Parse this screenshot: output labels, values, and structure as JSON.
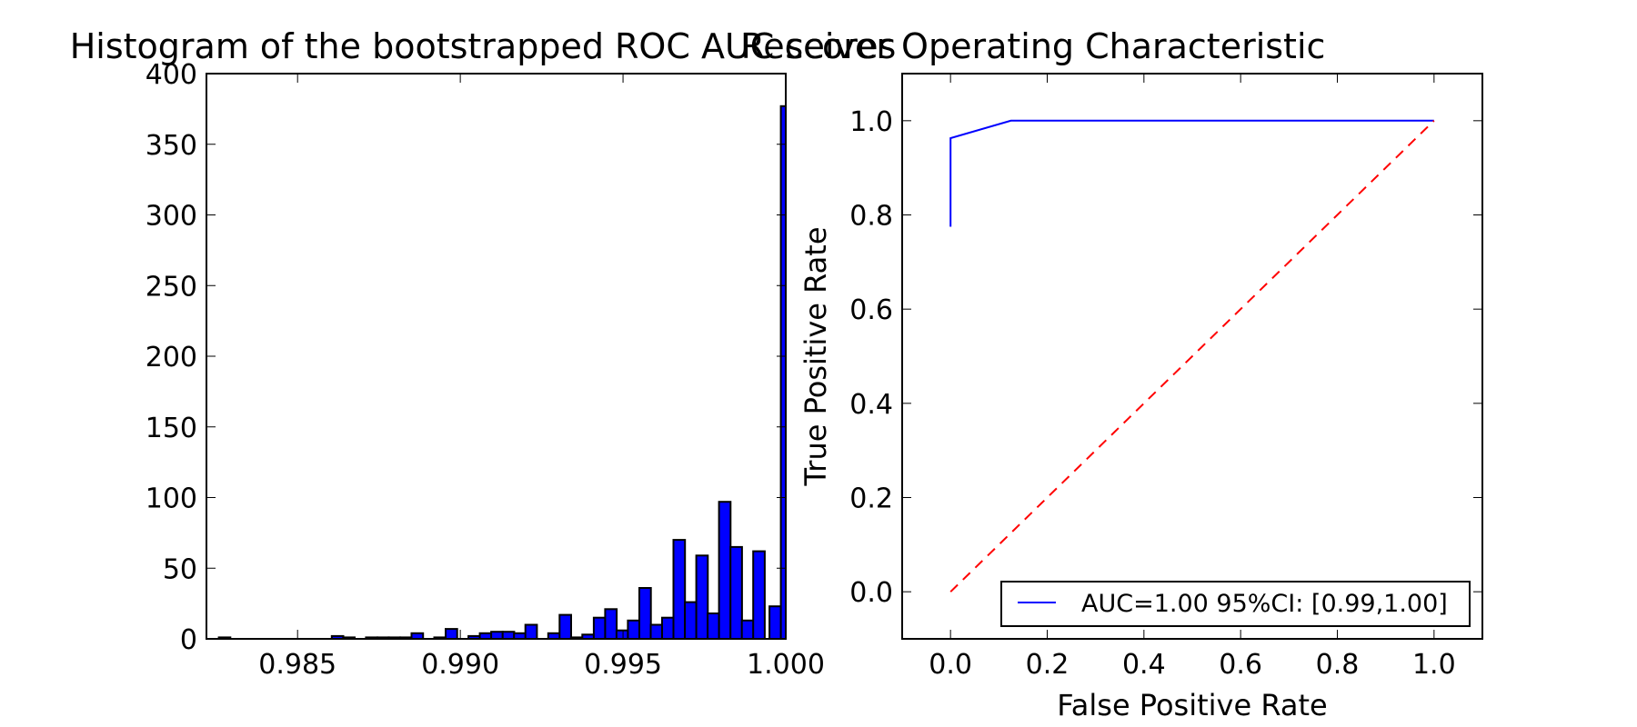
{
  "chart_data": [
    {
      "type": "bar",
      "title": "Histogram of the bootstrapped ROC AUC scores",
      "xlabel": "",
      "ylabel": "",
      "xlim": [
        0.9822,
        1.0
      ],
      "ylim": [
        0,
        400
      ],
      "xticks": [
        0.985,
        0.99,
        0.995,
        1.0
      ],
      "xtick_labels": [
        "0.985",
        "0.990",
        "0.995",
        "1.000"
      ],
      "yticks": [
        0,
        50,
        100,
        150,
        200,
        250,
        300,
        350,
        400
      ],
      "ytick_labels": [
        "0",
        "50",
        "100",
        "150",
        "200",
        "250",
        "300",
        "350",
        "400"
      ],
      "bin_width": 0.000356,
      "color": "#0000ff",
      "bins": [
        {
          "x": 0.98258,
          "count": 1
        },
        {
          "x": 0.98605,
          "count": 2
        },
        {
          "x": 0.9864,
          "count": 1
        },
        {
          "x": 0.9871,
          "count": 1
        },
        {
          "x": 0.98745,
          "count": 1
        },
        {
          "x": 0.9878,
          "count": 1
        },
        {
          "x": 0.98815,
          "count": 1
        },
        {
          "x": 0.9885,
          "count": 4
        },
        {
          "x": 0.9892,
          "count": 1
        },
        {
          "x": 0.98955,
          "count": 7
        },
        {
          "x": 0.99025,
          "count": 2
        },
        {
          "x": 0.9906,
          "count": 4
        },
        {
          "x": 0.99095,
          "count": 5
        },
        {
          "x": 0.9913,
          "count": 5
        },
        {
          "x": 0.99165,
          "count": 4
        },
        {
          "x": 0.992,
          "count": 10
        },
        {
          "x": 0.9927,
          "count": 4
        },
        {
          "x": 0.99305,
          "count": 17
        },
        {
          "x": 0.9934,
          "count": 1
        },
        {
          "x": 0.99375,
          "count": 3
        },
        {
          "x": 0.9941,
          "count": 15
        },
        {
          "x": 0.99445,
          "count": 21
        },
        {
          "x": 0.9948,
          "count": 6
        },
        {
          "x": 0.99515,
          "count": 13
        },
        {
          "x": 0.9955,
          "count": 36
        },
        {
          "x": 0.99585,
          "count": 10
        },
        {
          "x": 0.9962,
          "count": 15
        },
        {
          "x": 0.99655,
          "count": 70
        },
        {
          "x": 0.9969,
          "count": 26
        },
        {
          "x": 0.99725,
          "count": 59
        },
        {
          "x": 0.9976,
          "count": 18
        },
        {
          "x": 0.99795,
          "count": 97
        },
        {
          "x": 0.9983,
          "count": 65
        },
        {
          "x": 0.99865,
          "count": 13
        },
        {
          "x": 0.999,
          "count": 62
        },
        {
          "x": 0.99935,
          "count": 0
        },
        {
          "x": 0.9995,
          "count": 23
        },
        {
          "x": 0.99985,
          "count": 377
        }
      ]
    },
    {
      "type": "line",
      "title": "Receiver Operating Characteristic",
      "xlabel": "False Positive Rate",
      "ylabel": "True Positive Rate",
      "xlim": [
        -0.1,
        1.1
      ],
      "ylim": [
        -0.1,
        1.1
      ],
      "xticks": [
        0.0,
        0.2,
        0.4,
        0.6,
        0.8,
        1.0
      ],
      "xtick_labels": [
        "0.0",
        "0.2",
        "0.4",
        "0.6",
        "0.8",
        "1.0"
      ],
      "yticks": [
        0.0,
        0.2,
        0.4,
        0.6,
        0.8,
        1.0
      ],
      "ytick_labels": [
        "0.0",
        "0.2",
        "0.4",
        "0.6",
        "0.8",
        "1.0"
      ],
      "legend_position": "lower-right",
      "series": [
        {
          "name": "AUC=1.00 95%CI: [0.99,1.00]",
          "color": "#0000ff",
          "style": "solid",
          "x": [
            0.0,
            0.0,
            0.125,
            1.0
          ],
          "y": [
            0.775,
            0.963,
            1.0,
            1.0
          ]
        },
        {
          "color": "#ff0000",
          "style": "dashed",
          "x": [
            0.0,
            1.0
          ],
          "y": [
            0.0,
            1.0
          ]
        }
      ]
    }
  ]
}
